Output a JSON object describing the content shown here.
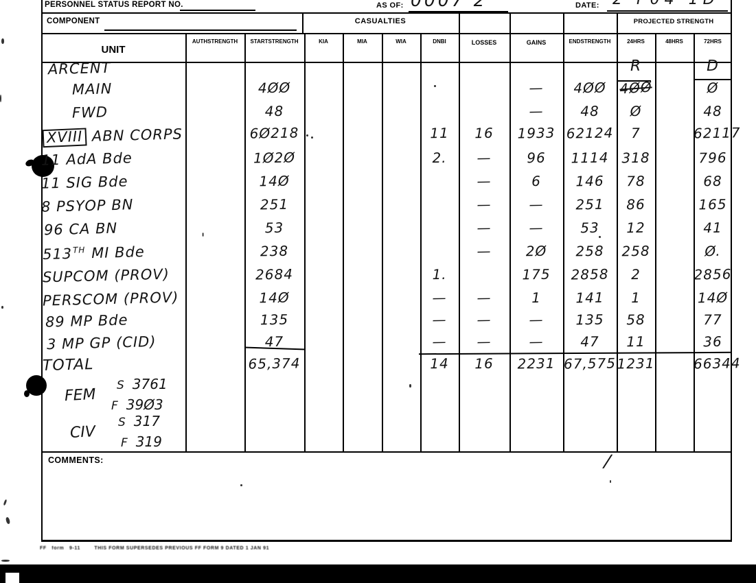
{
  "header": {
    "report_no_label": "PERSONNEL STATUS REPORT NO.",
    "as_of_label": "AS OF:",
    "as_of_value": "0007 2",
    "date_label": "DATE:",
    "date_value": "2 F04 1D"
  },
  "table": {
    "component_label": "COMPONENT",
    "casualties_label": "CASUALTIES",
    "projected_label": "PROJECTED STRENGTH",
    "columns": [
      {
        "key": "unit",
        "lines": [
          "UNIT"
        ]
      },
      {
        "key": "auth",
        "lines": [
          "AUTH",
          "STRENGTH"
        ]
      },
      {
        "key": "start",
        "lines": [
          "START",
          "STRENGTH"
        ]
      },
      {
        "key": "kia",
        "lines": [
          "KIA"
        ]
      },
      {
        "key": "mia",
        "lines": [
          "MIA"
        ]
      },
      {
        "key": "wia",
        "lines": [
          "WIA"
        ]
      },
      {
        "key": "dnbi",
        "lines": [
          "DNBI"
        ]
      },
      {
        "key": "losses",
        "lines": [
          "LOSSES"
        ]
      },
      {
        "key": "gains",
        "lines": [
          "GAINS"
        ]
      },
      {
        "key": "end",
        "lines": [
          "END",
          "STRENGTH"
        ]
      },
      {
        "key": "h24",
        "lines": [
          "24",
          "HRS"
        ]
      },
      {
        "key": "h48",
        "lines": [
          "48",
          "HRS"
        ]
      },
      {
        "key": "h72",
        "lines": [
          "72",
          "HRS"
        ]
      }
    ],
    "rows": [
      {
        "parts": [
          {
            "text": "ARCENT"
          }
        ],
        "values": {
          "h24": "R",
          "h72": "D"
        }
      },
      {
        "parts": [
          {
            "text": "MAIN"
          }
        ],
        "values": {
          "start": "4ØØ",
          "gains": "—",
          "end": "4ØØ",
          "h24": "4ØØ",
          "h72": "Ø"
        },
        "flags": {
          "h24": "strike"
        }
      },
      {
        "parts": [
          {
            "text": "FWD"
          }
        ],
        "values": {
          "start": "48",
          "gains": "—",
          "end": "48",
          "h24": "Ø",
          "h72": "48"
        }
      },
      {
        "parts": [
          {
            "text": "XVIII",
            "box": true
          },
          {
            "text": " ABN CORPS"
          }
        ],
        "values": {
          "start": "6Ø218",
          "dnbi": "11",
          "losses": "16",
          "gains": "1933",
          "end": "62124",
          "h24": "7",
          "h72": "62117"
        }
      },
      {
        "parts": [
          {
            "text": "11 AdA Bde"
          }
        ],
        "values": {
          "start": "1Ø2Ø",
          "dnbi": "2.",
          "losses": "—",
          "gains": "96",
          "end": "1114",
          "h24": "318",
          "h72": "796"
        }
      },
      {
        "parts": [
          {
            "text": "11 SIG Bde"
          }
        ],
        "values": {
          "start": "14Ø",
          "losses": "—",
          "gains": "6",
          "end": "146",
          "h24": "78",
          "h72": "68"
        }
      },
      {
        "parts": [
          {
            "text": "8 PSYOP BN"
          }
        ],
        "values": {
          "start": "251",
          "losses": "—",
          "gains": "—",
          "end": "251",
          "h24": "86",
          "h72": "165"
        }
      },
      {
        "parts": [
          {
            "text": "96 CA BN"
          }
        ],
        "values": {
          "start": "53",
          "losses": "—",
          "gains": "—",
          "end": "53",
          "h24": "12",
          "h72": "41"
        }
      },
      {
        "parts": [
          {
            "text": "513"
          },
          {
            "text": "TH",
            "sup": true
          },
          {
            "text": " MI Bde"
          }
        ],
        "values": {
          "start": "238",
          "losses": "—",
          "gains": "2Ø",
          "end": "258",
          "h24": "258",
          "h72": "Ø."
        }
      },
      {
        "parts": [
          {
            "text": "SUPCOM (PROV)"
          }
        ],
        "values": {
          "start": "2684",
          "dnbi": "1.",
          "gains": "175",
          "end": "2858",
          "h24": "2",
          "h72": "2856"
        }
      },
      {
        "parts": [
          {
            "text": "PERSCOM (PROV)"
          }
        ],
        "values": {
          "start": "14Ø",
          "dnbi": "—",
          "losses": "—",
          "gains": "1",
          "end": "141",
          "h24": "1",
          "h72": "14Ø"
        }
      },
      {
        "parts": [
          {
            "text": "89 MP Bde"
          }
        ],
        "values": {
          "start": "135",
          "dnbi": "—",
          "losses": "—",
          "gains": "—",
          "end": "135",
          "h24": "58",
          "h72": "77"
        }
      },
      {
        "parts": [
          {
            "text": "3 MP GP (CID)"
          }
        ],
        "values": {
          "start": "47",
          "dnbi": "—",
          "losses": "—",
          "gains": "—",
          "end": "47",
          "h24": "11",
          "h72": "36"
        }
      },
      {
        "parts": [
          {
            "text": "TOTAL"
          }
        ],
        "values": {
          "start": "65,374",
          "dnbi": "14",
          "losses": "16",
          "gains": "2231",
          "end": "67,575",
          "h24": "1231",
          "h72": "66344"
        }
      }
    ],
    "footnotes": [
      {
        "label": "FEM",
        "entries": [
          {
            "prefix": "S",
            "value": "3761"
          },
          {
            "prefix": "F",
            "value": "39Ø3"
          }
        ]
      },
      {
        "label": "CIV",
        "entries": [
          {
            "prefix": "S",
            "value": "317"
          },
          {
            "prefix": "F",
            "value": "319"
          }
        ]
      }
    ]
  },
  "comments": {
    "label": "COMMENTS:"
  },
  "fine_print": "FF   form   9-11        THIS FORM SUPERSEDES PREVIOUS FF FORM 9 DATED 1 JAN 91",
  "ink_color": "#141414",
  "line_color": "#000000"
}
